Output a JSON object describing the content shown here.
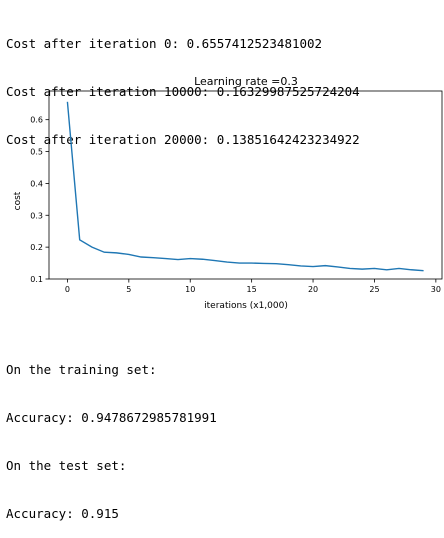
{
  "log_lines": [
    "Cost after iteration 0: 0.6557412523481002",
    "Cost after iteration 10000: 0.16329987525724204",
    "Cost after iteration 20000: 0.13851642423234922"
  ],
  "results_lines": [
    "On the training set:",
    "Accuracy: 0.9478672985781991",
    "On the test set:",
    "Accuracy: 0.915"
  ],
  "chart_data": {
    "type": "line",
    "title": "Learning rate =0.3",
    "xlabel": "iterations (x1,000)",
    "ylabel": "cost",
    "xlim": [
      -1.5,
      30.5
    ],
    "ylim": [
      0.1,
      0.69
    ],
    "x_ticks": [
      0,
      5,
      10,
      15,
      20,
      25,
      30
    ],
    "y_ticks": [
      0.1,
      0.2,
      0.3,
      0.4,
      0.5,
      0.6
    ],
    "grid": false,
    "color": "#1f77b4",
    "series": [
      {
        "x": [
          0,
          1,
          2,
          3,
          4,
          5,
          6,
          7,
          8,
          9,
          10,
          11,
          12,
          13,
          14,
          15,
          16,
          17,
          18,
          19,
          20,
          21,
          22,
          23,
          24,
          25,
          26,
          27,
          28,
          29
        ],
        "values": [
          0.656,
          0.223,
          0.2,
          0.184,
          0.182,
          0.177,
          0.169,
          0.167,
          0.164,
          0.161,
          0.164,
          0.162,
          0.158,
          0.153,
          0.15,
          0.15,
          0.149,
          0.148,
          0.145,
          0.141,
          0.139,
          0.142,
          0.138,
          0.133,
          0.131,
          0.133,
          0.129,
          0.133,
          0.129,
          0.126
        ]
      }
    ]
  }
}
